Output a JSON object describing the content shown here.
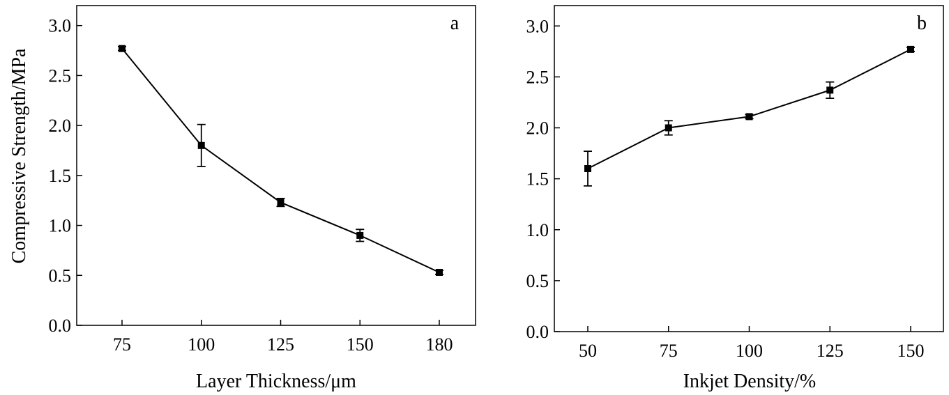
{
  "chart_data": [
    {
      "type": "line",
      "panel_label": "a",
      "title": "",
      "xlabel": "Layer Thickness/μm",
      "ylabel": "Compressive Strength/MPa",
      "categories": [
        "75",
        "100",
        "125",
        "150",
        "180"
      ],
      "ylim": [
        0,
        3.2
      ],
      "yticks": [
        "0.0",
        "0.5",
        "1.0",
        "1.5",
        "2.0",
        "2.5",
        "3.0"
      ],
      "series": [
        {
          "name": "Compressive strength",
          "values": [
            2.77,
            1.8,
            1.23,
            0.9,
            0.53
          ],
          "errors": [
            0.02,
            0.21,
            0.04,
            0.06,
            0.02
          ]
        }
      ]
    },
    {
      "type": "line",
      "panel_label": "b",
      "title": "",
      "xlabel": "Inkjet Density/%",
      "ylabel": "",
      "categories": [
        "50",
        "75",
        "100",
        "125",
        "150"
      ],
      "ylim": [
        0,
        3.2
      ],
      "yticks": [
        "0.0",
        "0.5",
        "1.0",
        "1.5",
        "2.0",
        "2.5",
        "3.0"
      ],
      "series": [
        {
          "name": "Compressive strength",
          "values": [
            1.6,
            2.0,
            2.11,
            2.37,
            2.77
          ],
          "errors": [
            0.17,
            0.07,
            0.02,
            0.08,
            0.02
          ]
        }
      ]
    }
  ]
}
